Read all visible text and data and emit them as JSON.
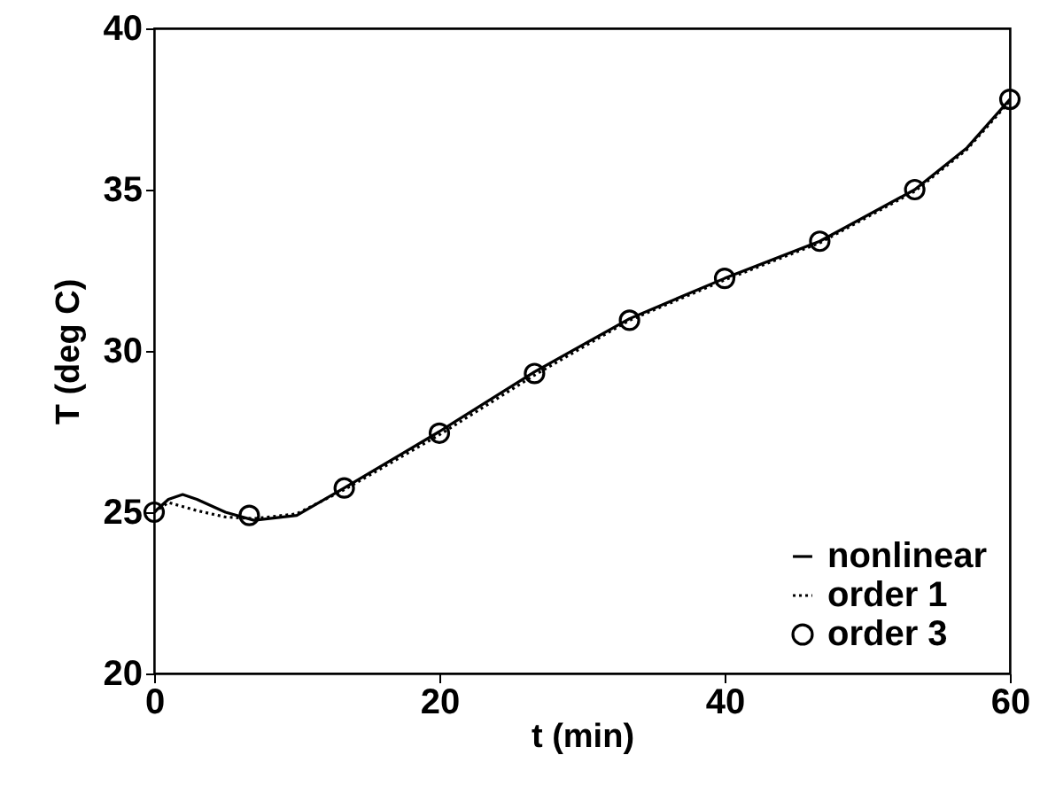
{
  "chart_data": {
    "type": "line",
    "xlabel": "t (min)",
    "ylabel": "T (deg C)",
    "xlim": [
      0,
      60
    ],
    "ylim": [
      20,
      40
    ],
    "xticks": [
      0,
      20,
      40,
      60
    ],
    "yticks": [
      20,
      25,
      30,
      35,
      40
    ],
    "grid": false,
    "legend": "bottom right",
    "series": [
      {
        "name": "nonlinear",
        "color": "#000000",
        "line_style": "solid",
        "x": [
          0,
          1,
          2,
          3,
          5,
          7,
          10,
          13.33,
          20,
          26.67,
          33.33,
          40,
          46.67,
          53.33,
          57,
          60
        ],
        "values": [
          25.0,
          25.4,
          25.55,
          25.4,
          25.0,
          24.75,
          24.9,
          25.75,
          27.5,
          29.35,
          31.0,
          32.25,
          33.4,
          35.0,
          36.3,
          37.8
        ]
      },
      {
        "name": "order 1",
        "color": "#000000",
        "line_style": "dotted",
        "x": [
          0,
          1,
          3,
          5,
          7,
          10,
          13.33,
          20,
          26.67,
          33.33,
          40,
          46.67,
          53.33,
          57,
          60
        ],
        "values": [
          25.0,
          25.3,
          25.05,
          24.85,
          24.8,
          24.95,
          25.7,
          27.4,
          29.25,
          30.95,
          32.2,
          33.35,
          34.95,
          36.25,
          37.75
        ]
      },
      {
        "name": "order 3",
        "color": "#000000",
        "type": "scatter",
        "marker": "circle",
        "x": [
          0,
          6.67,
          13.33,
          20,
          26.67,
          33.33,
          40,
          46.67,
          53.33,
          60
        ],
        "values": [
          25.0,
          24.9,
          25.75,
          27.45,
          29.3,
          30.95,
          32.25,
          33.4,
          35.0,
          37.8
        ]
      }
    ]
  }
}
